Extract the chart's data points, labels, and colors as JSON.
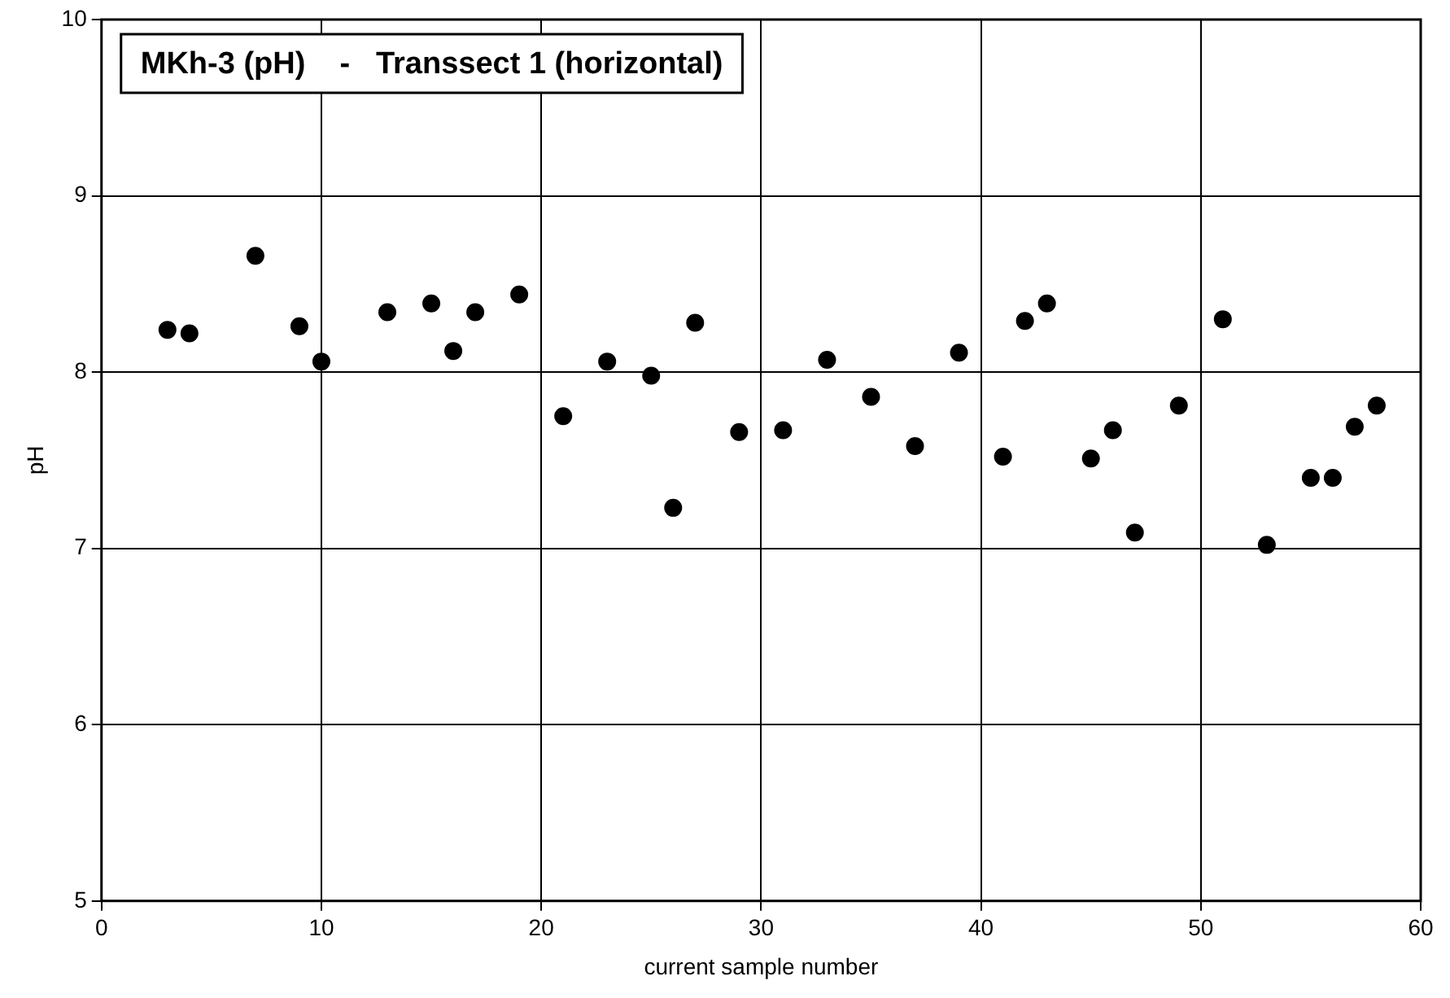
{
  "chart_data": {
    "type": "scatter",
    "title": "MKh-3 (pH)    -   Transsect 1 (horizontal)",
    "xlabel": "current sample number",
    "ylabel": "pH",
    "x": [
      3,
      4,
      7,
      9,
      10,
      13,
      15,
      16,
      17,
      19,
      21,
      23,
      25,
      26,
      27,
      29,
      31,
      33,
      35,
      37,
      39,
      41,
      42,
      43,
      45,
      46,
      47,
      49,
      51,
      53,
      55,
      56,
      57,
      58
    ],
    "values": [
      8.24,
      8.22,
      8.66,
      8.26,
      8.06,
      8.34,
      8.39,
      8.12,
      8.34,
      8.44,
      7.75,
      8.06,
      7.98,
      7.23,
      8.28,
      7.66,
      7.67,
      8.07,
      7.86,
      7.58,
      8.11,
      7.52,
      8.29,
      8.39,
      7.51,
      7.67,
      7.09,
      7.81,
      8.3,
      7.02,
      7.4,
      7.4,
      7.69,
      7.81
    ],
    "color": "#000000",
    "marker": "circle",
    "xlim": [
      0,
      60
    ],
    "xticks": [
      0,
      10,
      20,
      30,
      40,
      50,
      60
    ],
    "ylim": [
      5,
      10
    ],
    "yticks": [
      5,
      6,
      7,
      8,
      9,
      10
    ],
    "grid": true
  }
}
